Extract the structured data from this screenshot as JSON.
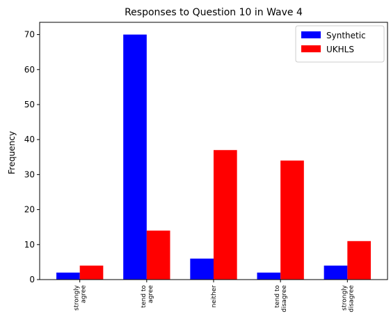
{
  "chart_data": {
    "type": "bar",
    "title": "Responses to Question 10 in Wave 4",
    "xlabel": "",
    "ylabel": "Frequency",
    "ylim": [
      0,
      73.5
    ],
    "yticks": [
      0,
      10,
      20,
      30,
      40,
      50,
      60,
      70
    ],
    "categories": [
      [
        "strongly",
        "agree"
      ],
      [
        "tend to",
        "agree"
      ],
      [
        "neither"
      ],
      [
        "tend to",
        "disagree"
      ],
      [
        "strongly",
        "disagree"
      ]
    ],
    "series": [
      {
        "name": "Synthetic",
        "color": "#0000ff",
        "values": [
          2,
          70,
          6,
          2,
          4
        ]
      },
      {
        "name": "UKHLS",
        "color": "#ff0000",
        "values": [
          4,
          14,
          37,
          34,
          11
        ]
      }
    ],
    "legend": "top-right",
    "grid": false
  }
}
